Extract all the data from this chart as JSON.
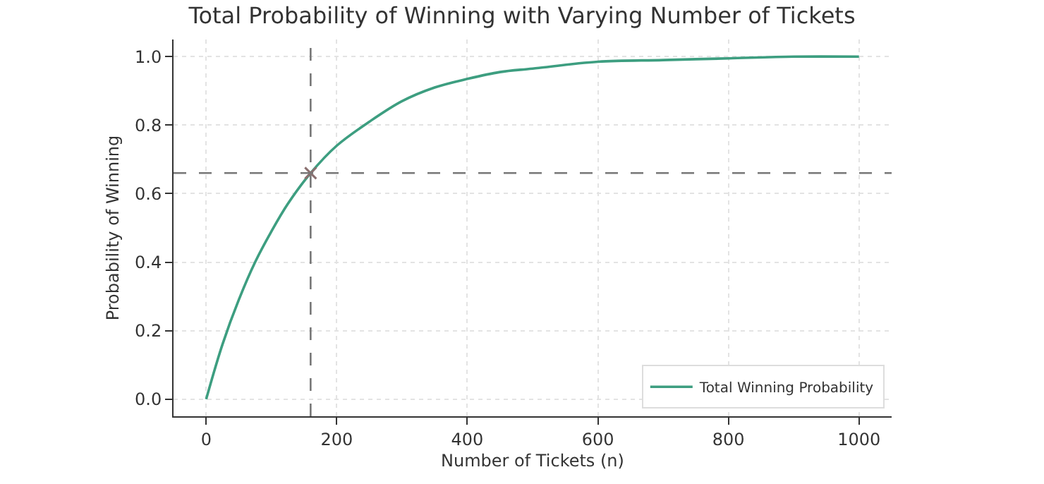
{
  "chart_data": {
    "type": "line",
    "title": "Total Probability of Winning with Varying Number of Tickets",
    "xlabel": "Number of Tickets (n)",
    "ylabel": "Probability of Winning",
    "series": [
      {
        "name": "Total Winning Probability",
        "color": "#3d9e80",
        "x": [
          0,
          25,
          50,
          75,
          100,
          125,
          160,
          200,
          250,
          300,
          350,
          400,
          450,
          500,
          600,
          700,
          800,
          900,
          1000
        ],
        "values": [
          0.0,
          0.16,
          0.29,
          0.4,
          0.49,
          0.57,
          0.66,
          0.74,
          0.81,
          0.87,
          0.91,
          0.935,
          0.955,
          0.965,
          0.985,
          0.99,
          0.995,
          1.0,
          1.0
        ]
      },
      {
        "type": "scatter",
        "marker": "cross",
        "color": "#8a6f6f",
        "x": [
          160
        ],
        "values": [
          0.66
        ]
      }
    ],
    "xlim": [
      -50,
      1050
    ],
    "ylim": [
      -0.05,
      1.05
    ],
    "xticks": [
      0,
      200,
      400,
      600,
      800,
      1000
    ],
    "yticks": [
      {
        "value": 0,
        "label": "0.0"
      },
      {
        "value": 0.2,
        "label": "0.2"
      },
      {
        "value": 0.4,
        "label": "0.4"
      },
      {
        "value": 0.6,
        "label": "0.6"
      },
      {
        "value": 0.8,
        "label": "0.8"
      },
      {
        "value": 1.0,
        "label": "1.0"
      }
    ],
    "ref_lines": [
      {
        "axis": "x",
        "value": 160,
        "color": "#777777",
        "line_style": "dashed"
      },
      {
        "axis": "y",
        "value": 0.66,
        "color": "#777777",
        "line_style": "dashed"
      }
    ],
    "grid": true,
    "legend": "bottom right",
    "marker": "none",
    "line_style": "solid"
  }
}
